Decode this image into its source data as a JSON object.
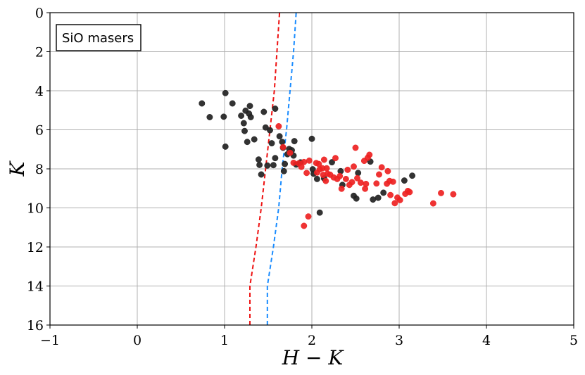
{
  "chart_data": {
    "type": "scatter",
    "title": "",
    "annotation": "SiO masers",
    "xlabel": "H − K",
    "ylabel": "K",
    "xlim": [
      -1,
      5
    ],
    "ylim": [
      16,
      0
    ],
    "y_inverted": true,
    "grid": true,
    "x_ticks": [
      -1,
      0,
      1,
      2,
      3,
      4,
      5
    ],
    "y_ticks": [
      0,
      2,
      4,
      6,
      8,
      10,
      12,
      14,
      16
    ],
    "x_tick_labels": [
      "−1",
      "0",
      "1",
      "2",
      "3",
      "4",
      "5"
    ],
    "y_tick_labels": [
      "0",
      "2",
      "4",
      "6",
      "8",
      "10",
      "12",
      "14",
      "16"
    ],
    "series": [
      {
        "color": "#222222",
        "points": [
          [
            0.74,
            4.65
          ],
          [
            1.01,
            4.12
          ],
          [
            0.83,
            5.35
          ],
          [
            1.09,
            4.65
          ],
          [
            0.99,
            5.33
          ],
          [
            1.19,
            5.28
          ],
          [
            1.22,
            5.66
          ],
          [
            1.24,
            5.02
          ],
          [
            1.29,
            4.78
          ],
          [
            1.28,
            5.17
          ],
          [
            1.3,
            5.35
          ],
          [
            1.23,
            6.06
          ],
          [
            1.26,
            6.62
          ],
          [
            1.34,
            6.49
          ],
          [
            1.45,
            5.08
          ],
          [
            1.58,
            4.92
          ],
          [
            1.47,
            5.88
          ],
          [
            1.52,
            6.02
          ],
          [
            1.54,
            6.69
          ],
          [
            1.01,
            6.86
          ],
          [
            1.39,
            7.52
          ],
          [
            1.4,
            7.8
          ],
          [
            1.42,
            8.29
          ],
          [
            1.49,
            7.83
          ],
          [
            1.56,
            7.81
          ],
          [
            1.58,
            7.45
          ],
          [
            1.63,
            6.33
          ],
          [
            1.66,
            6.62
          ],
          [
            1.67,
            6.92
          ],
          [
            1.69,
            7.75
          ],
          [
            1.68,
            8.12
          ],
          [
            1.72,
            7.25
          ],
          [
            1.74,
            6.98
          ],
          [
            1.77,
            7.05
          ],
          [
            1.79,
            7.32
          ],
          [
            1.8,
            6.58
          ],
          [
            1.82,
            7.78
          ],
          [
            1.87,
            7.67
          ],
          [
            2.0,
            6.46
          ],
          [
            2.01,
            8.02
          ],
          [
            2.02,
            8.25
          ],
          [
            2.06,
            8.52
          ],
          [
            2.14,
            8.49
          ],
          [
            2.23,
            7.66
          ],
          [
            2.33,
            8.12
          ],
          [
            2.35,
            8.82
          ],
          [
            2.48,
            9.38
          ],
          [
            2.51,
            9.52
          ],
          [
            2.53,
            8.21
          ],
          [
            2.67,
            7.63
          ],
          [
            2.7,
            9.57
          ],
          [
            2.76,
            9.48
          ],
          [
            2.82,
            9.22
          ],
          [
            3.06,
            8.6
          ],
          [
            3.15,
            8.35
          ],
          [
            2.09,
            10.24
          ]
        ]
      },
      {
        "color": "#ee2222",
        "points": [
          [
            1.62,
            5.82
          ],
          [
            1.67,
            6.89
          ],
          [
            1.75,
            7.18
          ],
          [
            1.79,
            7.69
          ],
          [
            1.85,
            7.72
          ],
          [
            1.88,
            7.9
          ],
          [
            1.91,
            7.65
          ],
          [
            1.94,
            8.21
          ],
          [
            1.97,
            7.58
          ],
          [
            2.05,
            7.7
          ],
          [
            2.06,
            8.19
          ],
          [
            2.08,
            7.75
          ],
          [
            2.09,
            8.03
          ],
          [
            2.12,
            7.97
          ],
          [
            2.13,
            8.31
          ],
          [
            2.14,
            7.53
          ],
          [
            2.16,
            8.62
          ],
          [
            2.17,
            7.97
          ],
          [
            2.21,
            8.3
          ],
          [
            2.25,
            8.44
          ],
          [
            2.27,
            7.45
          ],
          [
            2.29,
            8.52
          ],
          [
            2.32,
            8.37
          ],
          [
            2.34,
            9.02
          ],
          [
            2.39,
            8.52
          ],
          [
            2.43,
            8.82
          ],
          [
            2.46,
            8.68
          ],
          [
            2.48,
            7.88
          ],
          [
            2.5,
            6.92
          ],
          [
            2.52,
            8.48
          ],
          [
            2.56,
            8.71
          ],
          [
            2.6,
            7.59
          ],
          [
            2.61,
            9.02
          ],
          [
            2.62,
            8.77
          ],
          [
            2.64,
            7.43
          ],
          [
            2.66,
            7.28
          ],
          [
            2.74,
            8.75
          ],
          [
            2.77,
            8.29
          ],
          [
            2.8,
            7.92
          ],
          [
            2.86,
            8.76
          ],
          [
            2.87,
            8.12
          ],
          [
            2.89,
            8.62
          ],
          [
            2.9,
            9.34
          ],
          [
            2.93,
            8.66
          ],
          [
            2.95,
            9.76
          ],
          [
            2.98,
            9.47
          ],
          [
            3.01,
            9.6
          ],
          [
            3.07,
            9.28
          ],
          [
            3.1,
            9.13
          ],
          [
            3.12,
            9.19
          ],
          [
            3.39,
            9.77
          ],
          [
            3.48,
            9.24
          ],
          [
            3.62,
            9.3
          ],
          [
            1.96,
            10.44
          ],
          [
            1.91,
            10.92
          ],
          [
            2.18,
            8.25
          ],
          [
            2.41,
            8.05
          ]
        ]
      }
    ],
    "lines": [
      {
        "color": "#ee1111",
        "style": "dashed",
        "points": [
          [
            1.29,
            16.0
          ],
          [
            1.29,
            14.0
          ],
          [
            1.36,
            12.0
          ],
          [
            1.42,
            10.0
          ],
          [
            1.47,
            8.0
          ],
          [
            1.52,
            6.0
          ],
          [
            1.57,
            4.0
          ],
          [
            1.6,
            2.0
          ],
          [
            1.63,
            0.0
          ]
        ]
      },
      {
        "color": "#1a8cff",
        "style": "dashed",
        "points": [
          [
            1.49,
            16.0
          ],
          [
            1.49,
            14.0
          ],
          [
            1.56,
            12.0
          ],
          [
            1.62,
            10.0
          ],
          [
            1.66,
            8.0
          ],
          [
            1.71,
            6.0
          ],
          [
            1.75,
            4.0
          ],
          [
            1.79,
            2.0
          ],
          [
            1.82,
            0.0
          ]
        ]
      }
    ]
  }
}
